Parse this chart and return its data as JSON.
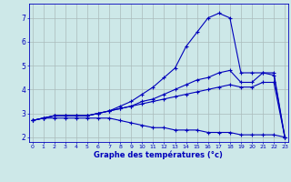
{
  "title": "Graphe des températures (°c)",
  "background_color": "#cde8e8",
  "grid_color": "#aabbbb",
  "line_color": "#0000bb",
  "hours": [
    0,
    1,
    2,
    3,
    4,
    5,
    6,
    7,
    8,
    9,
    10,
    11,
    12,
    13,
    14,
    15,
    16,
    17,
    18,
    19,
    20,
    21,
    22,
    23
  ],
  "line1": [
    2.7,
    2.8,
    2.9,
    2.9,
    2.9,
    2.9,
    3.0,
    3.1,
    3.3,
    3.5,
    3.8,
    4.1,
    4.5,
    4.9,
    5.8,
    6.4,
    7.0,
    7.2,
    7.0,
    4.7,
    4.7,
    4.7,
    4.7,
    2.0
  ],
  "line2": [
    2.7,
    2.8,
    2.9,
    2.9,
    2.9,
    2.9,
    3.0,
    3.1,
    3.2,
    3.3,
    3.5,
    3.6,
    3.8,
    4.0,
    4.2,
    4.4,
    4.5,
    4.7,
    4.8,
    4.3,
    4.3,
    4.7,
    4.6,
    2.0
  ],
  "line3": [
    2.7,
    2.8,
    2.9,
    2.9,
    2.9,
    2.9,
    3.0,
    3.1,
    3.2,
    3.3,
    3.4,
    3.5,
    3.6,
    3.7,
    3.8,
    3.9,
    4.0,
    4.1,
    4.2,
    4.1,
    4.1,
    4.3,
    4.3,
    2.0
  ],
  "line4": [
    2.7,
    2.8,
    2.8,
    2.8,
    2.8,
    2.8,
    2.8,
    2.8,
    2.7,
    2.6,
    2.5,
    2.4,
    2.4,
    2.3,
    2.3,
    2.3,
    2.2,
    2.2,
    2.2,
    2.1,
    2.1,
    2.1,
    2.1,
    2.0
  ],
  "ylim": [
    1.8,
    7.6
  ],
  "xlim": [
    -0.3,
    23.3
  ],
  "yticks": [
    2,
    3,
    4,
    5,
    6,
    7
  ],
  "xticks": [
    0,
    1,
    2,
    3,
    4,
    5,
    6,
    7,
    8,
    9,
    10,
    11,
    12,
    13,
    14,
    15,
    16,
    17,
    18,
    19,
    20,
    21,
    22,
    23
  ]
}
